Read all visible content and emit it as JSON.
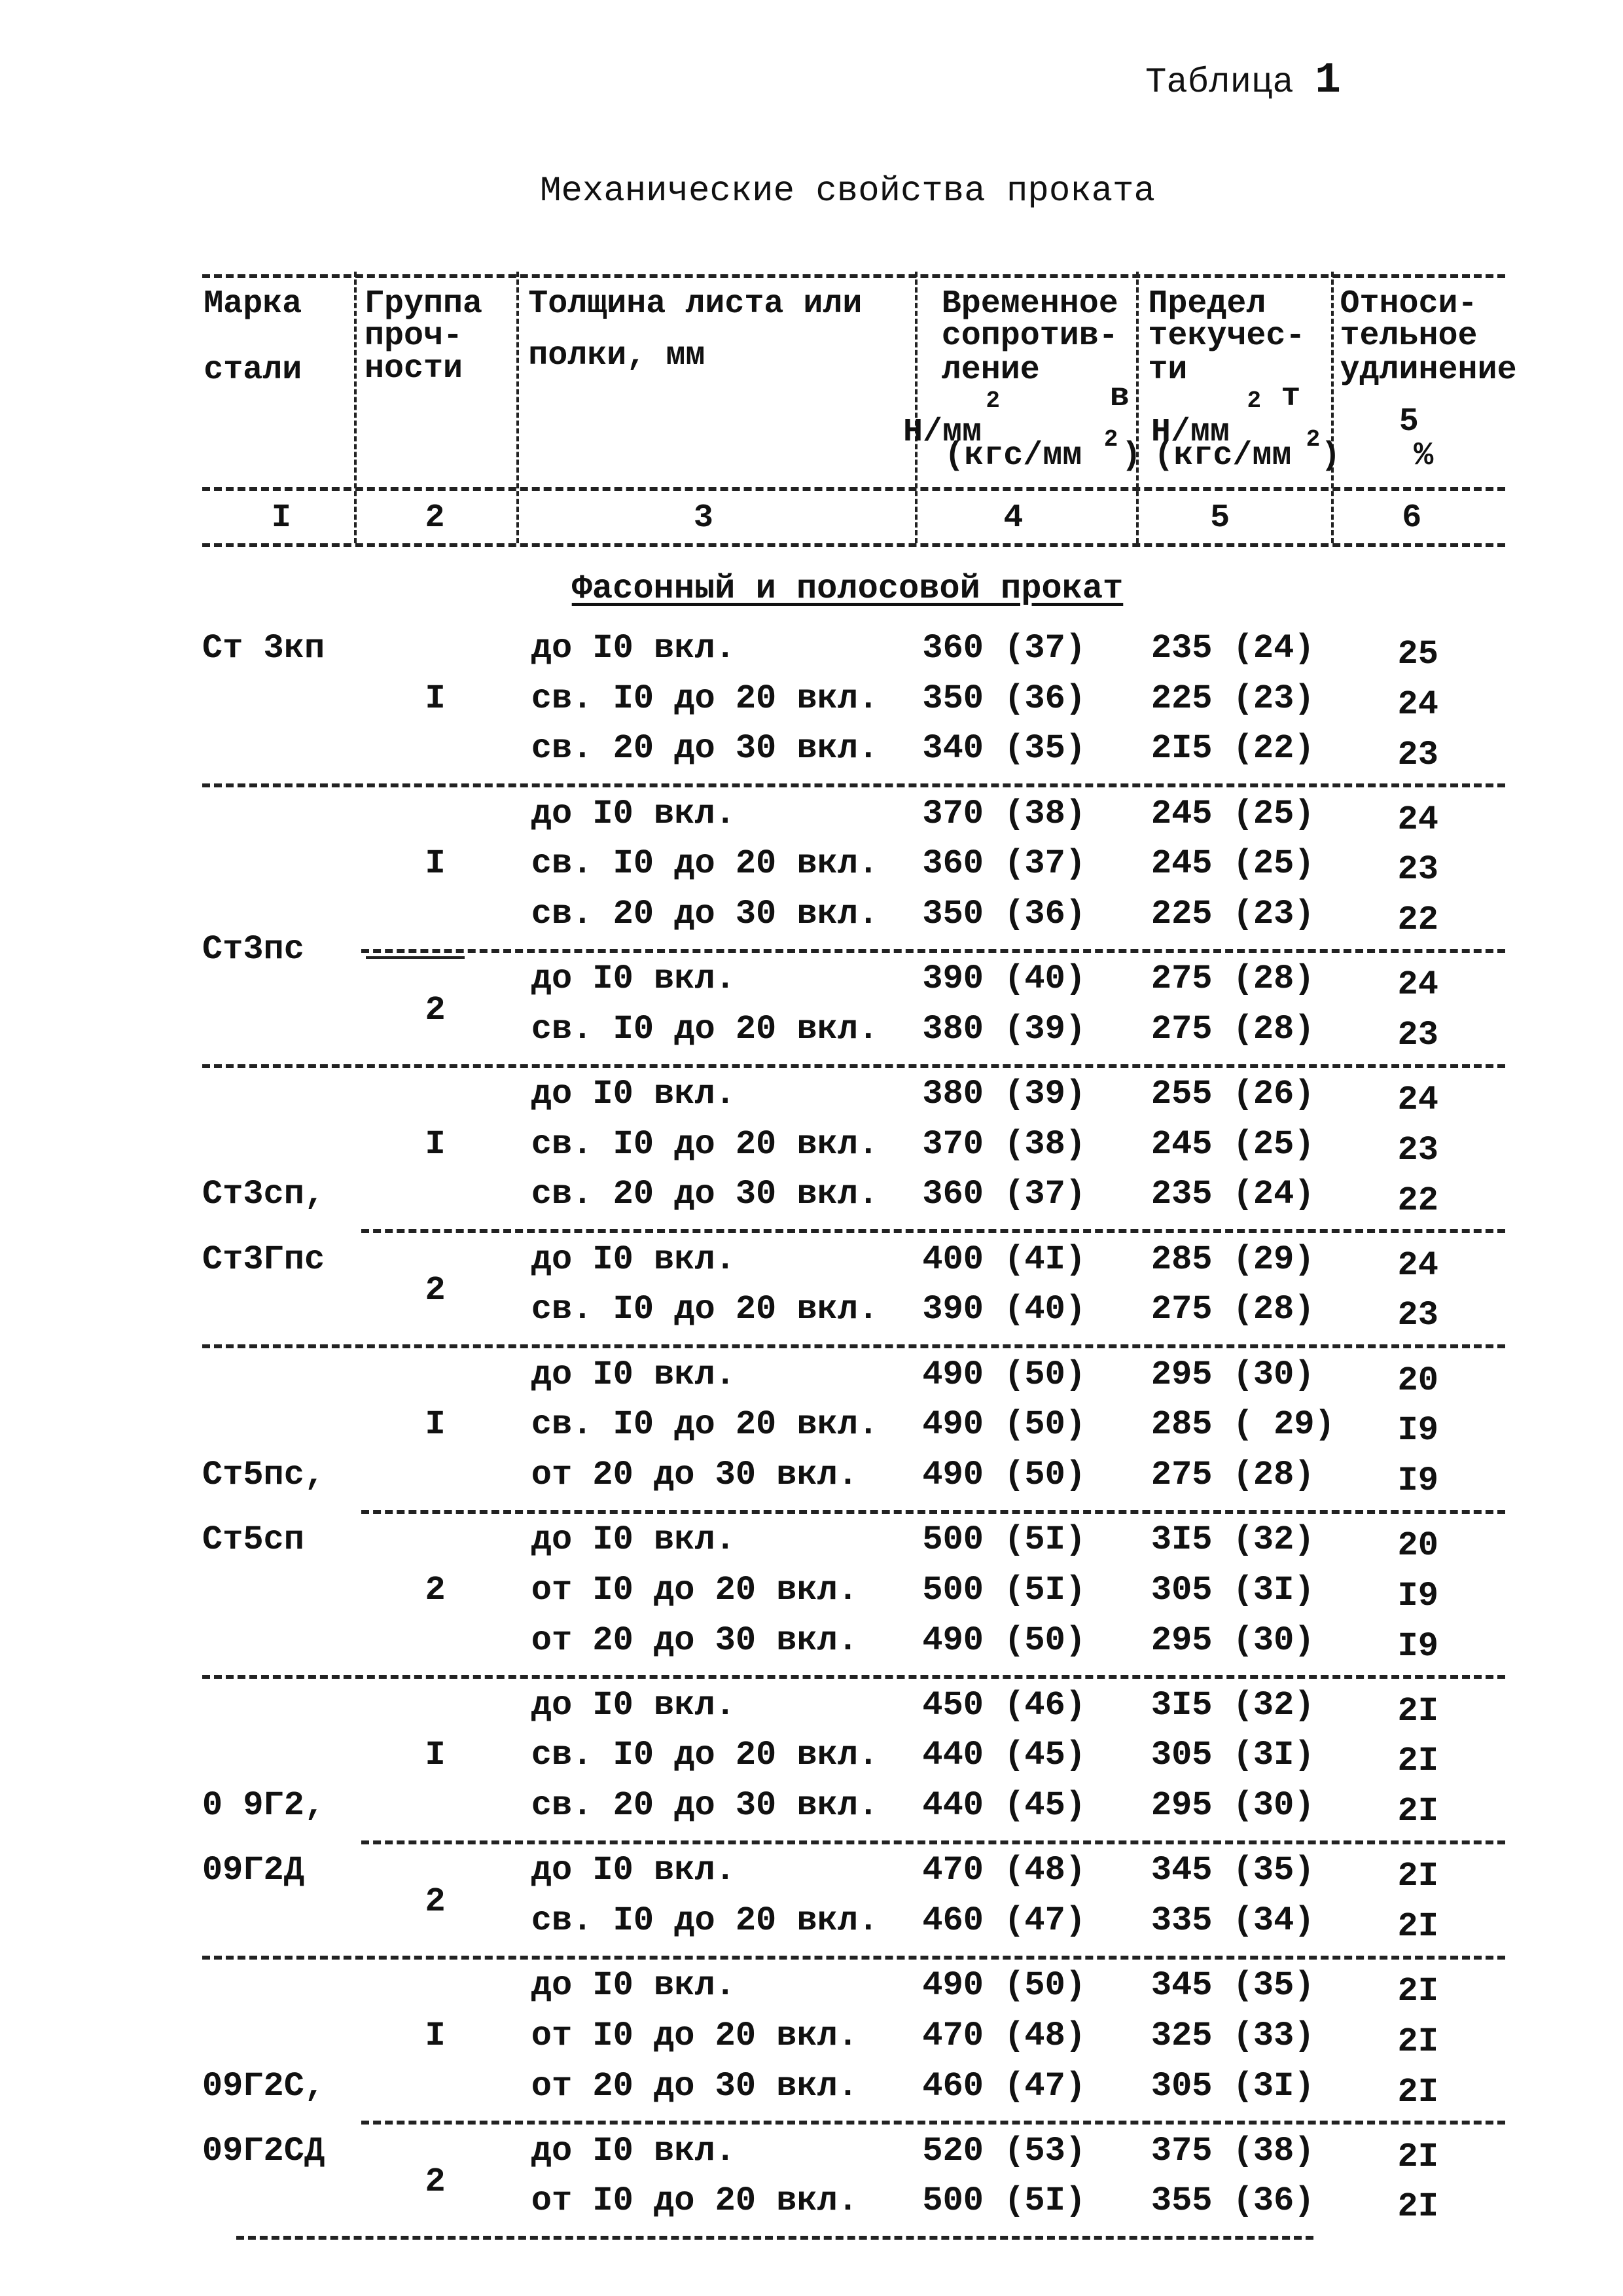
{
  "caption": {
    "label": "Таблица",
    "number": "1"
  },
  "title": "Механические свойства проката",
  "header": {
    "col1": [
      "Марка",
      "стали"
    ],
    "col2": [
      "Группа",
      "проч-",
      "ности"
    ],
    "col3": [
      "Толщина листа или",
      "полки, мм"
    ],
    "col4": [
      "Временное",
      "сопротив-",
      "ление",
      "в",
      "Н/мм",
      "2",
      "(кгс/мм",
      "2",
      ")"
    ],
    "col5": [
      "Предел",
      "текучес-",
      "ти",
      "т",
      "Н/мм",
      "2",
      "(кгс/мм",
      "2",
      ")"
    ],
    "col6": [
      "Относи-",
      "тельное",
      "удлинение",
      "5",
      "%"
    ],
    "numbers": [
      "I",
      "2",
      "3",
      "4",
      "5",
      "6"
    ]
  },
  "section": "Фасонный и полосовой прокат",
  "blocks": [
    {
      "steel": [
        "Ст 3кп"
      ],
      "groups": [
        {
          "group": "I",
          "rows": [
            [
              "до I0 вкл.",
              "360 (37)",
              "235 (24)",
              "25"
            ],
            [
              "св. I0 до 20 вкл.",
              "350 (36)",
              "225 (23)",
              "24"
            ],
            [
              "св. 20 до 30 вкл.",
              "340 (35)",
              "2I5 (22)",
              "23"
            ]
          ]
        }
      ]
    },
    {
      "steel": [
        "Ст3пс"
      ],
      "groups": [
        {
          "group": "I",
          "rows": [
            [
              "до I0 вкл.",
              "370 (38)",
              "245 (25)",
              "24"
            ],
            [
              "св. I0 до 20 вкл.",
              "360 (37)",
              "245 (25)",
              "23"
            ],
            [
              "св. 20 до 30 вкл.",
              "350 (36)",
              "225 (23)",
              "22"
            ]
          ]
        },
        {
          "group": "2",
          "rows": [
            [
              "до I0 вкл.",
              "390 (40)",
              "275 (28)",
              "24"
            ],
            [
              "св. I0 до 20 вкл.",
              "380 (39)",
              "275 (28)",
              "23"
            ]
          ]
        }
      ]
    },
    {
      "steel": [
        "Ст3сп,",
        "Ст3Гпс"
      ],
      "groups": [
        {
          "group": "I",
          "rows": [
            [
              "до I0 вкл.",
              "380 (39)",
              "255 (26)",
              "24"
            ],
            [
              "св. I0 до 20 вкл.",
              "370 (38)",
              "245 (25)",
              "23"
            ],
            [
              "св. 20 до 30 вкл.",
              "360 (37)",
              "235 (24)",
              "22"
            ]
          ]
        },
        {
          "group": "2",
          "rows": [
            [
              "до I0 вкл.",
              "400 (4I)",
              "285 (29)",
              "24"
            ],
            [
              "св. I0 до 20 вкл.",
              "390 (40)",
              "275 (28)",
              "23"
            ]
          ]
        }
      ]
    },
    {
      "steel": [
        "Ст5пс,",
        "Ст5сп"
      ],
      "groups": [
        {
          "group": "I",
          "rows": [
            [
              "до I0 вкл.",
              "490 (50)",
              "295 (30)",
              "20"
            ],
            [
              "св. I0 до 20 вкл.",
              "490 (50)",
              "285 ( 29)",
              "I9"
            ],
            [
              "от 20 до 30 вкл.",
              "490 (50)",
              "275 (28)",
              "I9"
            ]
          ]
        },
        {
          "group": "2",
          "rows": [
            [
              "до I0 вкл.",
              "500 (5I)",
              "3I5 (32)",
              "20"
            ],
            [
              "от I0 до 20 вкл.",
              "500 (5I)",
              "305 (3I)",
              "I9"
            ],
            [
              "от 20 до 30 вкл.",
              "490 (50)",
              "295 (30)",
              "I9"
            ]
          ]
        }
      ]
    },
    {
      "steel": [
        "0 9Г2,",
        "09Г2Д"
      ],
      "groups": [
        {
          "group": "I",
          "rows": [
            [
              "до I0 вкл.",
              "450 (46)",
              "3I5 (32)",
              "2I"
            ],
            [
              "св. I0 до 20 вкл.",
              "440 (45)",
              "305 (3I)",
              "2I"
            ],
            [
              "св. 20 до 30 вкл.",
              "440 (45)",
              "295 (30)",
              "2I"
            ]
          ]
        },
        {
          "group": "2",
          "rows": [
            [
              "до I0 вкл.",
              "470 (48)",
              "345 (35)",
              "2I"
            ],
            [
              "св. I0 до 20 вкл.",
              "460 (47)",
              "335 (34)",
              "2I"
            ]
          ]
        }
      ]
    },
    {
      "steel": [
        "09Г2С,",
        "09Г2СД"
      ],
      "groups": [
        {
          "group": "I",
          "rows": [
            [
              "до I0 вкл.",
              "490 (50)",
              "345 (35)",
              "2I"
            ],
            [
              "от I0 до 20 вкл.",
              "470 (48)",
              "325 (33)",
              "2I"
            ],
            [
              "от 20 до 30 вкл.",
              "460 (47)",
              "305 (3I)",
              "2I"
            ]
          ]
        },
        {
          "group": "2",
          "rows": [
            [
              "до I0 вкл.",
              "520 (53)",
              "375 (38)",
              "2I"
            ],
            [
              "от I0 до 20 вкл.",
              "500 (5I)",
              "355 (36)",
              "2I"
            ]
          ]
        }
      ]
    }
  ]
}
